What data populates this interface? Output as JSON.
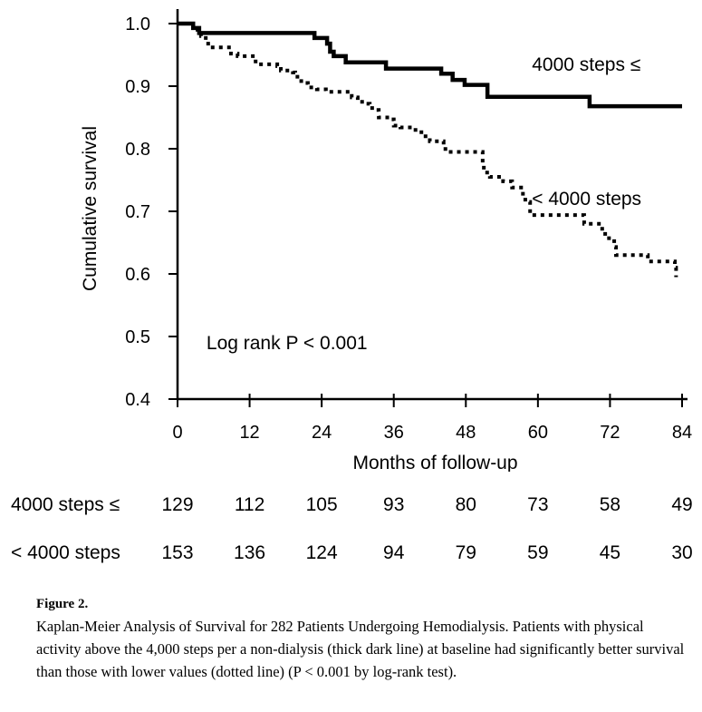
{
  "chart_data": {
    "type": "line",
    "subtype": "kaplan-meier-step",
    "title": "",
    "xlabel": "Months of follow-up",
    "ylabel": "Cumulative survival",
    "xlim": [
      0,
      84
    ],
    "ylim": [
      0.4,
      1.0
    ],
    "x_ticks": [
      0,
      12,
      24,
      36,
      48,
      60,
      72,
      84
    ],
    "y_ticks": [
      0.4,
      0.5,
      0.6,
      0.7,
      0.8,
      0.9,
      1.0
    ],
    "y_tick_labels": [
      "0.4",
      "0.5",
      "0.6",
      "0.7",
      "0.8",
      "0.9",
      "1.0"
    ],
    "grid": false,
    "legend": "inline-labels",
    "annotations": [
      {
        "text": "Log rank P < 0.001",
        "x": 3,
        "y": 0.48
      }
    ],
    "series": [
      {
        "name": "4000 steps ≤",
        "style": "solid-thick",
        "label_position": {
          "x": 59,
          "y": 0.925
        },
        "x_end": 84,
        "steps": [
          [
            0,
            1.0
          ],
          [
            2.6,
            0.993
          ],
          [
            3.6,
            0.985
          ],
          [
            22.8,
            0.977
          ],
          [
            24.9,
            0.968
          ],
          [
            25.4,
            0.955
          ],
          [
            26.0,
            0.948
          ],
          [
            28.0,
            0.938
          ],
          [
            34.7,
            0.928
          ],
          [
            43.9,
            0.92
          ],
          [
            45.8,
            0.91
          ],
          [
            47.8,
            0.902
          ],
          [
            51.6,
            0.883
          ],
          [
            68.6,
            0.868
          ]
        ]
      },
      {
        "name": "< 4000 steps",
        "style": "dotted",
        "label_position": {
          "x": 59,
          "y": 0.71
        },
        "x_end": 83,
        "steps": [
          [
            0,
            1.0
          ],
          [
            2.6,
            0.99
          ],
          [
            3.9,
            0.98
          ],
          [
            4.7,
            0.972
          ],
          [
            5.1,
            0.962
          ],
          [
            8.9,
            0.952
          ],
          [
            10.0,
            0.948
          ],
          [
            13.0,
            0.935
          ],
          [
            16.6,
            0.932
          ],
          [
            17.2,
            0.925
          ],
          [
            19.2,
            0.922
          ],
          [
            19.6,
            0.915
          ],
          [
            20.6,
            0.905
          ],
          [
            21.7,
            0.898
          ],
          [
            23.2,
            0.895
          ],
          [
            24.7,
            0.891
          ],
          [
            29.0,
            0.882
          ],
          [
            30.0,
            0.875
          ],
          [
            31.2,
            0.872
          ],
          [
            32.0,
            0.865
          ],
          [
            33.0,
            0.862
          ],
          [
            33.5,
            0.85
          ],
          [
            35.3,
            0.847
          ],
          [
            36.0,
            0.837
          ],
          [
            37.1,
            0.834
          ],
          [
            39.0,
            0.83
          ],
          [
            40.6,
            0.82
          ],
          [
            42.0,
            0.812
          ],
          [
            44.3,
            0.803
          ],
          [
            44.6,
            0.795
          ],
          [
            50.8,
            0.775
          ],
          [
            51.0,
            0.762
          ],
          [
            52.0,
            0.755
          ],
          [
            54.2,
            0.748
          ],
          [
            55.7,
            0.738
          ],
          [
            57.2,
            0.728
          ],
          [
            57.9,
            0.715
          ],
          [
            58.7,
            0.694
          ],
          [
            67.7,
            0.68
          ],
          [
            70.7,
            0.668
          ],
          [
            71.2,
            0.657
          ],
          [
            72.7,
            0.643
          ],
          [
            73.0,
            0.63
          ],
          [
            78.3,
            0.62
          ],
          [
            82.8,
            0.61
          ],
          [
            83.0,
            0.595
          ]
        ]
      }
    ],
    "risk_table": {
      "times": [
        0,
        12,
        24,
        36,
        48,
        60,
        72,
        84
      ],
      "rows": [
        {
          "label": "4000 steps ≤",
          "values": [
            129,
            112,
            105,
            93,
            80,
            73,
            58,
            49
          ]
        },
        {
          "label": "< 4000 steps",
          "values": [
            153,
            136,
            124,
            94,
            79,
            59,
            45,
            30
          ]
        }
      ]
    }
  },
  "caption": {
    "title": "Figure 2.",
    "text": "Kaplan-Meier Analysis of Survival for 282 Patients Undergoing Hemodialysis. Patients with physical activity above the 4,000 steps per a non-dialysis (thick dark line) at baseline had significantly better survival than those with lower values (dotted line) (P < 0.001 by log-rank test)."
  }
}
